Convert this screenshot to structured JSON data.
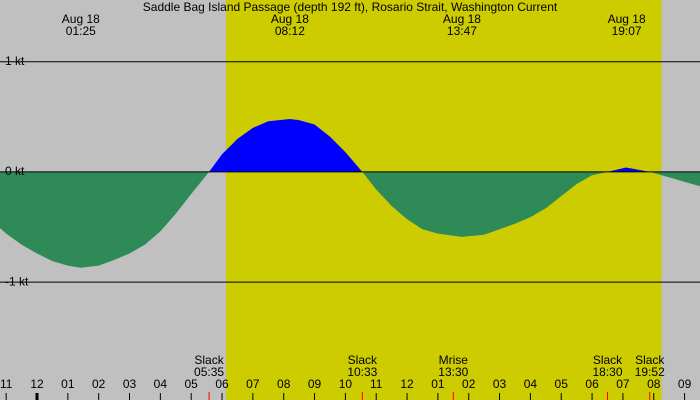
{
  "chart_data": {
    "type": "area",
    "title": "Saddle Bag Island Passage (depth 192 ft), Rosario Strait, Washington Current",
    "background_color": "#c0c0c0",
    "daylight_color": "#cccc00",
    "daylight": [
      6.13,
      20.25
    ],
    "xlim": [
      -1.2,
      21.5
    ],
    "xticks": [
      {
        "value": -1,
        "label": "11"
      },
      {
        "value": 0,
        "label": "12"
      },
      {
        "value": 1,
        "label": "01"
      },
      {
        "value": 2,
        "label": "02"
      },
      {
        "value": 3,
        "label": "03"
      },
      {
        "value": 4,
        "label": "04"
      },
      {
        "value": 5,
        "label": "05"
      },
      {
        "value": 6,
        "label": "06"
      },
      {
        "value": 7,
        "label": "07"
      },
      {
        "value": 8,
        "label": "08"
      },
      {
        "value": 9,
        "label": "09"
      },
      10,
      11,
      12,
      {
        "value": 13,
        "label": "01"
      },
      {
        "value": 14,
        "label": "02"
      },
      {
        "value": 15,
        "label": "03"
      },
      {
        "value": 16,
        "label": "04"
      },
      {
        "value": 17,
        "label": "05"
      },
      {
        "value": 18,
        "label": "06"
      },
      {
        "value": 19,
        "label": "07"
      },
      {
        "value": 20,
        "label": "08"
      },
      {
        "value": 21,
        "label": "09"
      }
    ],
    "ylim": [
      -2.07,
      1.56
    ],
    "yticks": [
      {
        "value": 1,
        "label": "1 kt"
      },
      {
        "value": 0,
        "label": "0 kt"
      },
      {
        "value": -1,
        "label": "-1 kt"
      }
    ],
    "series": [
      {
        "name": "Current",
        "flood_color": "#0000ff",
        "ebb_color": "#2e8b57",
        "x": [
          -1.2,
          -1,
          -0.5,
          0,
          0.5,
          1,
          1.42,
          2,
          2.5,
          3,
          3.5,
          4,
          4.5,
          5,
          5.58,
          6,
          6.5,
          7,
          7.5,
          8.2,
          8.5,
          9,
          9.5,
          10,
          10.55,
          11,
          11.5,
          12,
          12.5,
          13,
          13.78,
          14.5,
          15,
          15.5,
          16,
          16.5,
          17,
          17.5,
          18,
          18.5,
          19.1,
          19.5,
          19.87,
          20.5,
          21,
          21.5
        ],
        "values": [
          -0.51,
          -0.56,
          -0.66,
          -0.74,
          -0.81,
          -0.85,
          -0.87,
          -0.85,
          -0.8,
          -0.74,
          -0.66,
          -0.54,
          -0.38,
          -0.2,
          0,
          0.16,
          0.3,
          0.4,
          0.46,
          0.48,
          0.47,
          0.43,
          0.32,
          0.18,
          0,
          -0.16,
          -0.31,
          -0.43,
          -0.52,
          -0.56,
          -0.59,
          -0.57,
          -0.52,
          -0.47,
          -0.41,
          -0.33,
          -0.22,
          -0.11,
          -0.03,
          0,
          0.04,
          0.02,
          0,
          -0.05,
          -0.09,
          -0.13
        ]
      }
    ],
    "extremes": [
      {
        "date": "Aug 18",
        "time": "01:25",
        "x": 1.42
      },
      {
        "date": "Aug 18",
        "time": "08:12",
        "x": 8.2
      },
      {
        "date": "Aug 18",
        "time": "13:47",
        "x": 13.78
      },
      {
        "date": "Aug 18",
        "time": "19:07",
        "x": 19.12
      }
    ],
    "event_color": "#ff0000",
    "events": [
      {
        "label": "Slack",
        "time": "05:35",
        "x": 5.58
      },
      {
        "label": "Slack",
        "time": "10:33",
        "x": 10.55
      },
      {
        "label": "Mrise",
        "time": "13:30",
        "x": 13.5
      },
      {
        "label": "Slack",
        "time": "18:30",
        "x": 18.5
      },
      {
        "label": "Slack",
        "time": "19:52",
        "x": 19.87
      }
    ]
  }
}
